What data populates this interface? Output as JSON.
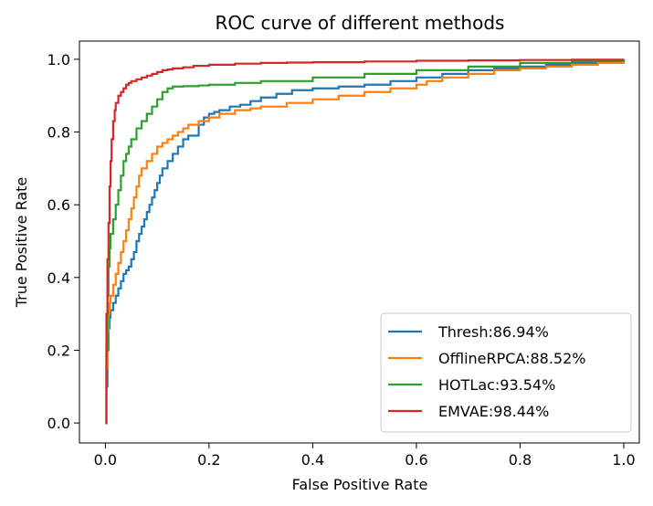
{
  "chart_data": {
    "type": "line",
    "title": "ROC curve of different methods",
    "xlabel": "False Positive Rate",
    "ylabel": "True Positive Rate",
    "xlim": [
      -0.05,
      1.03
    ],
    "ylim": [
      -0.055,
      1.05
    ],
    "xticks": [
      "0.0",
      "0.2",
      "0.4",
      "0.6",
      "0.8",
      "1.0"
    ],
    "yticks": [
      "0.0",
      "0.2",
      "0.4",
      "0.6",
      "0.8",
      "1.0"
    ],
    "grid": false,
    "legend_position": "lower-right",
    "series": [
      {
        "name": "Thresh:86.94%",
        "color": "#1f77b4",
        "x": [
          0,
          0.002,
          0.004,
          0.006,
          0.008,
          0.01,
          0.015,
          0.02,
          0.025,
          0.03,
          0.035,
          0.04,
          0.045,
          0.05,
          0.055,
          0.06,
          0.065,
          0.07,
          0.075,
          0.08,
          0.085,
          0.09,
          0.095,
          0.1,
          0.105,
          0.11,
          0.12,
          0.13,
          0.14,
          0.15,
          0.16,
          0.17,
          0.18,
          0.19,
          0.2,
          0.21,
          0.22,
          0.24,
          0.26,
          0.28,
          0.3,
          0.33,
          0.36,
          0.4,
          0.45,
          0.5,
          0.55,
          0.6,
          0.65,
          0.7,
          0.75,
          0.8,
          0.85,
          0.9,
          0.95,
          1.0
        ],
        "y": [
          0.0,
          0.1,
          0.2,
          0.26,
          0.29,
          0.31,
          0.33,
          0.35,
          0.37,
          0.39,
          0.41,
          0.42,
          0.43,
          0.45,
          0.47,
          0.5,
          0.52,
          0.54,
          0.56,
          0.58,
          0.6,
          0.62,
          0.64,
          0.66,
          0.68,
          0.7,
          0.72,
          0.74,
          0.76,
          0.78,
          0.79,
          0.79,
          0.82,
          0.84,
          0.85,
          0.855,
          0.86,
          0.87,
          0.875,
          0.885,
          0.895,
          0.905,
          0.915,
          0.92,
          0.925,
          0.93,
          0.94,
          0.95,
          0.96,
          0.97,
          0.975,
          0.98,
          0.985,
          0.99,
          0.995,
          1.0
        ]
      },
      {
        "name": "OfflineRPCA:88.52%",
        "color": "#ff7f0e",
        "x": [
          0,
          0.002,
          0.004,
          0.006,
          0.008,
          0.01,
          0.015,
          0.02,
          0.025,
          0.03,
          0.035,
          0.04,
          0.045,
          0.05,
          0.055,
          0.06,
          0.065,
          0.07,
          0.08,
          0.09,
          0.1,
          0.11,
          0.12,
          0.13,
          0.14,
          0.15,
          0.16,
          0.18,
          0.2,
          0.22,
          0.25,
          0.28,
          0.3,
          0.35,
          0.4,
          0.45,
          0.5,
          0.55,
          0.6,
          0.62,
          0.65,
          0.7,
          0.75,
          0.8,
          0.85,
          0.9,
          0.95,
          1.0
        ],
        "y": [
          0.0,
          0.15,
          0.25,
          0.3,
          0.33,
          0.35,
          0.38,
          0.41,
          0.44,
          0.47,
          0.5,
          0.53,
          0.56,
          0.59,
          0.62,
          0.65,
          0.68,
          0.7,
          0.72,
          0.74,
          0.76,
          0.77,
          0.78,
          0.79,
          0.8,
          0.81,
          0.82,
          0.83,
          0.84,
          0.85,
          0.86,
          0.865,
          0.87,
          0.88,
          0.89,
          0.9,
          0.91,
          0.92,
          0.93,
          0.94,
          0.95,
          0.96,
          0.97,
          0.975,
          0.98,
          0.985,
          0.99,
          1.0
        ]
      },
      {
        "name": "HOTLac:93.54%",
        "color": "#2ca02c",
        "x": [
          0,
          0.002,
          0.004,
          0.006,
          0.008,
          0.01,
          0.015,
          0.02,
          0.025,
          0.03,
          0.035,
          0.04,
          0.045,
          0.05,
          0.06,
          0.07,
          0.08,
          0.09,
          0.1,
          0.11,
          0.12,
          0.13,
          0.15,
          0.18,
          0.2,
          0.25,
          0.3,
          0.4,
          0.5,
          0.6,
          0.7,
          0.8,
          0.9,
          1.0
        ],
        "y": [
          0.0,
          0.2,
          0.35,
          0.43,
          0.48,
          0.52,
          0.56,
          0.6,
          0.64,
          0.68,
          0.72,
          0.74,
          0.76,
          0.78,
          0.81,
          0.83,
          0.85,
          0.87,
          0.89,
          0.91,
          0.92,
          0.925,
          0.926,
          0.928,
          0.93,
          0.935,
          0.94,
          0.95,
          0.96,
          0.97,
          0.98,
          0.99,
          0.995,
          1.0
        ]
      },
      {
        "name": "EMVAE:98.44%",
        "color": "#d62728",
        "x": [
          0,
          0.002,
          0.004,
          0.006,
          0.008,
          0.01,
          0.012,
          0.015,
          0.018,
          0.02,
          0.025,
          0.03,
          0.035,
          0.04,
          0.045,
          0.05,
          0.06,
          0.07,
          0.08,
          0.09,
          0.1,
          0.11,
          0.12,
          0.13,
          0.15,
          0.17,
          0.2,
          0.25,
          0.3,
          0.35,
          0.4,
          0.5,
          0.6,
          0.7,
          0.8,
          0.9,
          1.0
        ],
        "y": [
          0.0,
          0.3,
          0.45,
          0.55,
          0.65,
          0.72,
          0.78,
          0.83,
          0.86,
          0.88,
          0.9,
          0.91,
          0.92,
          0.93,
          0.935,
          0.94,
          0.945,
          0.95,
          0.955,
          0.96,
          0.965,
          0.97,
          0.972,
          0.975,
          0.978,
          0.982,
          0.985,
          0.988,
          0.99,
          0.991,
          0.992,
          0.994,
          0.996,
          0.997,
          0.998,
          0.999,
          1.0
        ]
      }
    ]
  }
}
